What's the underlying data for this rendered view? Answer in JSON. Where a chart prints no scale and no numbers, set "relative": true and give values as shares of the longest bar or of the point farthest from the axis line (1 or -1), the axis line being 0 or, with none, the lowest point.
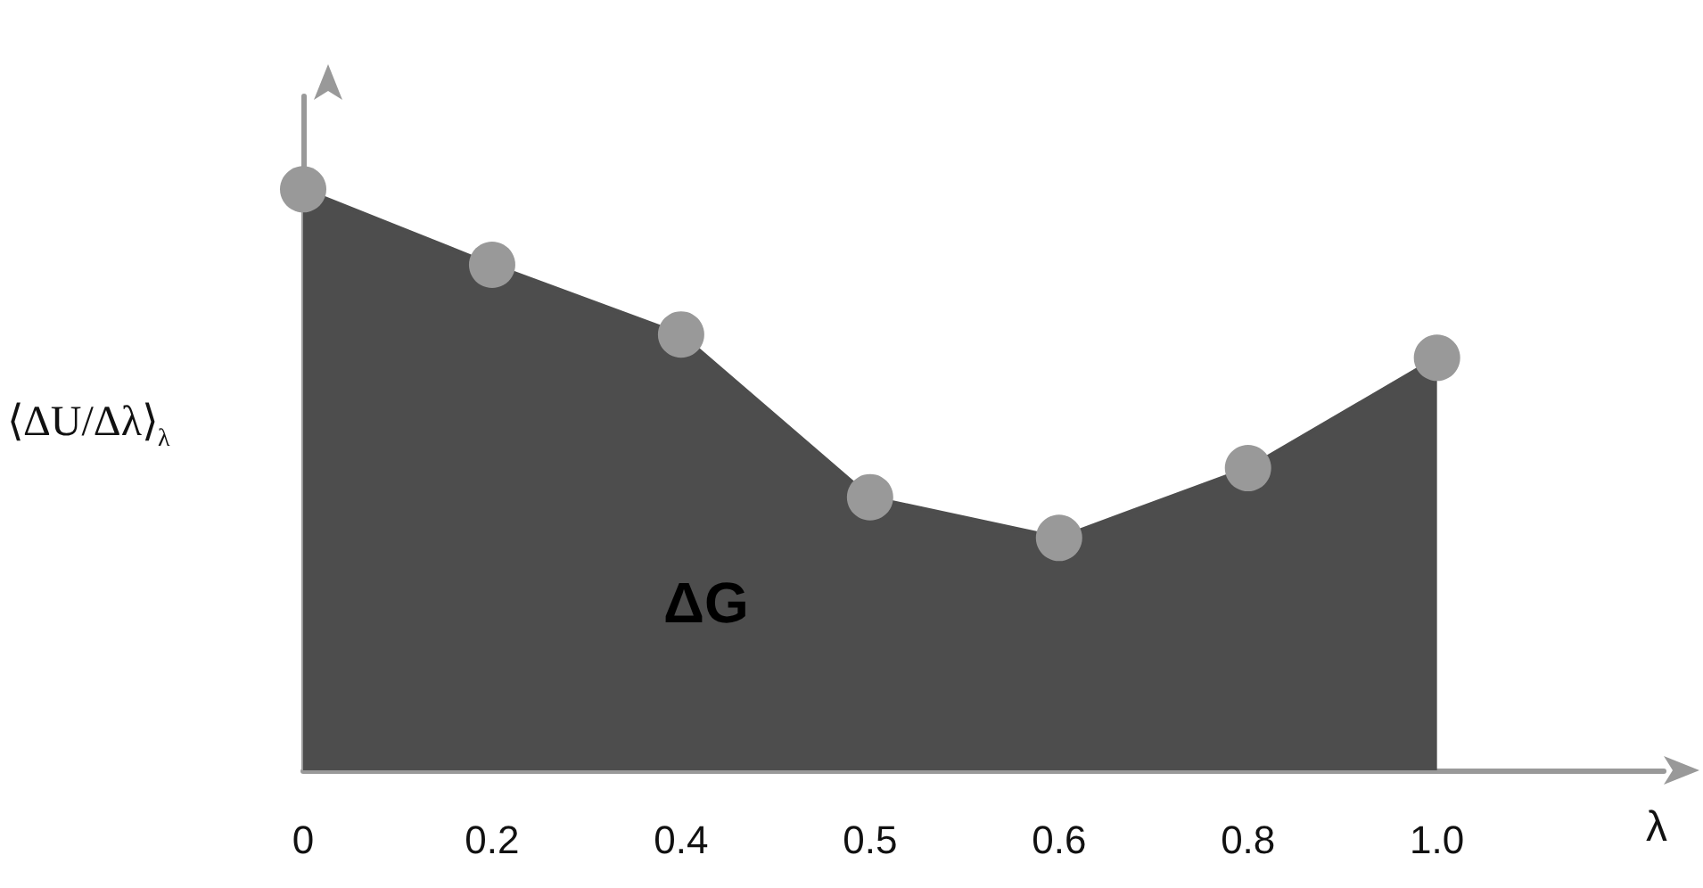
{
  "chart_data": {
    "type": "area",
    "relative": true,
    "categories": [
      "0",
      "0.2",
      "0.4",
      "0.5",
      "0.6",
      "0.8",
      "1.0"
    ],
    "series": [
      {
        "color": "#4d4d4d",
        "values": [
          1,
          0.87,
          0.75,
          0.47,
          0.4,
          0.52,
          0.71
        ]
      }
    ],
    "xlabel": "λ",
    "ylabel": "⟨ΔU/Δλ⟩$_{λ}$",
    "annotations": [
      "ΔG"
    ],
    "marker": "circle"
  }
}
